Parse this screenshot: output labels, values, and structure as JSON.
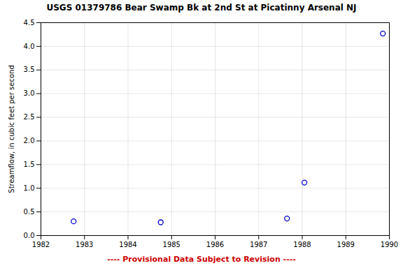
{
  "chart_data": {
    "type": "scatter",
    "title": "USGS 01379786 Bear Swamp Bk at 2nd St at Picatinny Arsenal NJ",
    "ylabel": "Streamflow, in cubic feet per second",
    "x": [
      1982.75,
      1984.75,
      1987.65,
      1988.05,
      1989.85
    ],
    "values": [
      0.3,
      0.28,
      0.36,
      1.12,
      4.27
    ],
    "color": "#0000cc",
    "marker": "circle",
    "xlim": [
      1982,
      1990
    ],
    "ylim": [
      0.0,
      4.5
    ],
    "xticks": [
      1982,
      1983,
      1984,
      1985,
      1986,
      1987,
      1988,
      1989,
      1990
    ],
    "yticks": [
      {
        "value": 0,
        "label": "0.0"
      },
      0.5,
      {
        "value": 1,
        "label": "1.0"
      },
      1.5,
      {
        "value": 2,
        "label": "2.0"
      },
      2.5,
      {
        "value": 3,
        "label": "3.0"
      },
      3.5,
      {
        "value": 4,
        "label": "4.0"
      },
      4.5
    ],
    "grid": true,
    "annotations": [
      {
        "text": "---- Provisional Data Subject to Revision ----",
        "color": "#cc0000"
      }
    ]
  }
}
